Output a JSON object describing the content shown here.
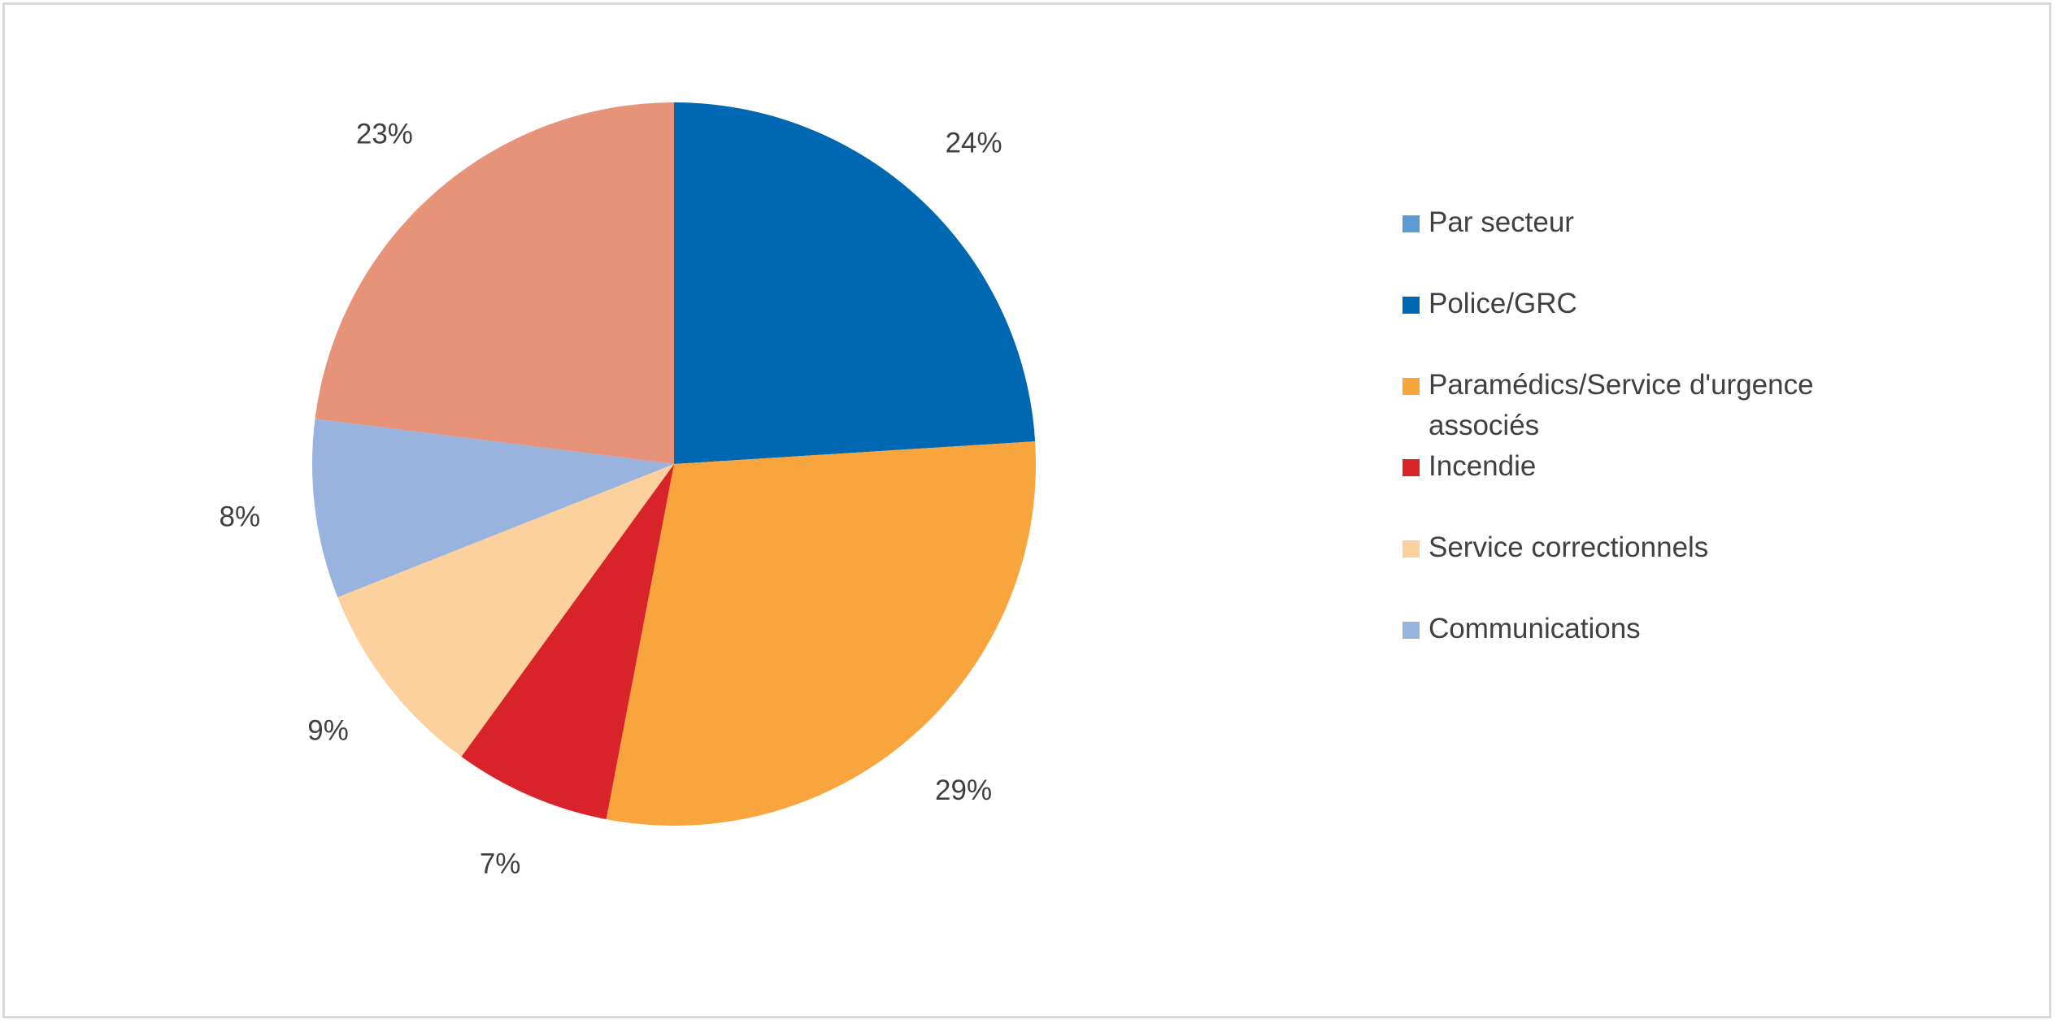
{
  "chart_data": {
    "type": "pie",
    "categories": [
      "Par secteur",
      "Police/GRC",
      "Paramédics/Service d'urgence associés",
      "Incendie",
      "Service correctionnels",
      "Communications",
      null
    ],
    "values": [
      0,
      24,
      29,
      7,
      9,
      8,
      23
    ],
    "value_labels": [
      null,
      "24%",
      "29%",
      "7%",
      "9%",
      "8%",
      "23%"
    ],
    "colors": [
      "#5b9bd5",
      "#0067b3",
      "#f9a53e",
      "#d9232a",
      "#fdd19e",
      "#97b3de",
      "#e6937a"
    ],
    "legend": "right"
  }
}
